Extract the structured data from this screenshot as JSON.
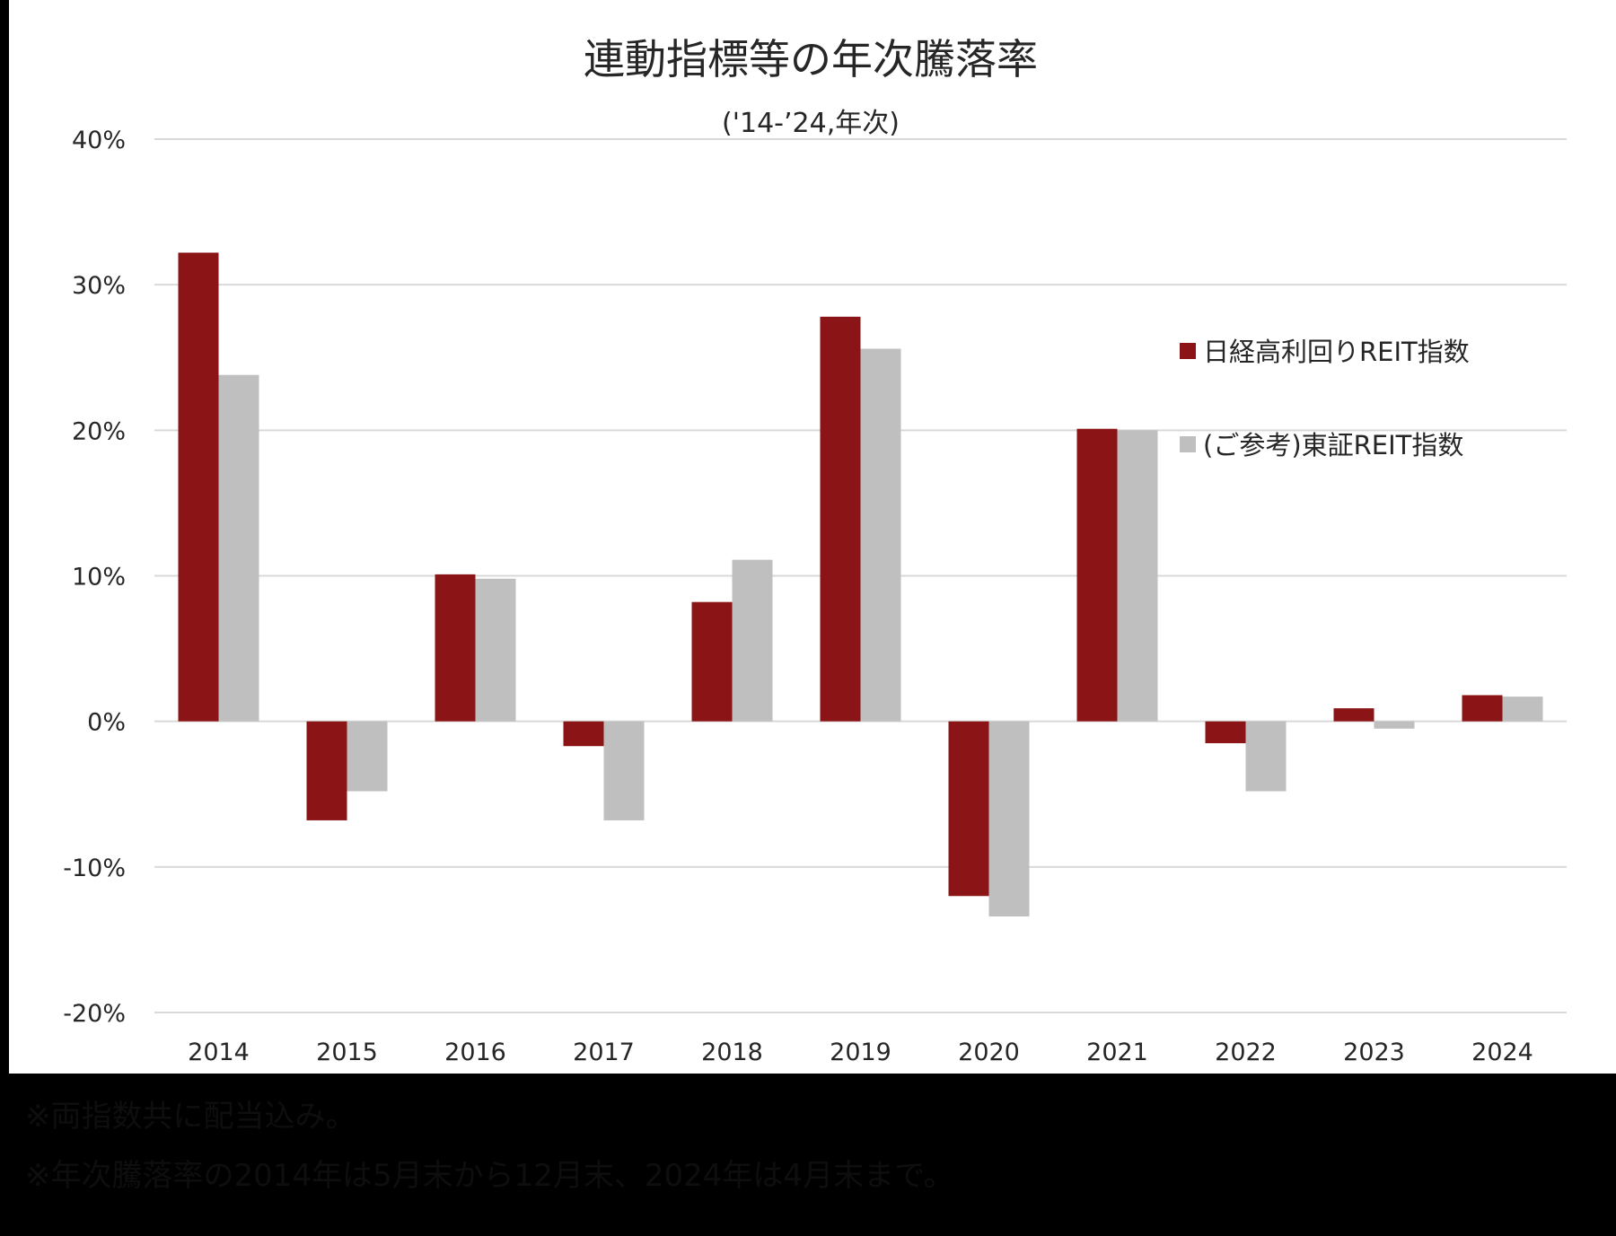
{
  "chart_data": {
    "type": "bar",
    "title": "連動指標等の年次騰落率",
    "subtitle": "('14-’24,年次)",
    "categories": [
      "2014",
      "2015",
      "2016",
      "2017",
      "2018",
      "2019",
      "2020",
      "2021",
      "2022",
      "2023",
      "2024"
    ],
    "series": [
      {
        "name": "日経高利回りREIT指数",
        "color": "#8b1516",
        "values": [
          32.2,
          -6.8,
          10.1,
          -1.7,
          8.2,
          27.8,
          -12.0,
          20.1,
          -1.5,
          0.9,
          1.8
        ]
      },
      {
        "name": "(ご参考)東証REIT指数",
        "color": "#bfbfbf",
        "values": [
          23.8,
          -4.8,
          9.8,
          -6.8,
          11.1,
          25.6,
          -13.4,
          20.0,
          -4.8,
          -0.5,
          1.7
        ]
      }
    ],
    "y_ticks": [
      "40%",
      "30%",
      "20%",
      "10%",
      "0%",
      "-10%",
      "-20%"
    ],
    "ylim": [
      -20,
      40
    ],
    "grid": true,
    "legend_position": "right"
  },
  "footnotes": [
    "※両指数共に配当込み。",
    "※年次騰落率の2014年は5月末から12月末、2024年は4月末まで。"
  ]
}
